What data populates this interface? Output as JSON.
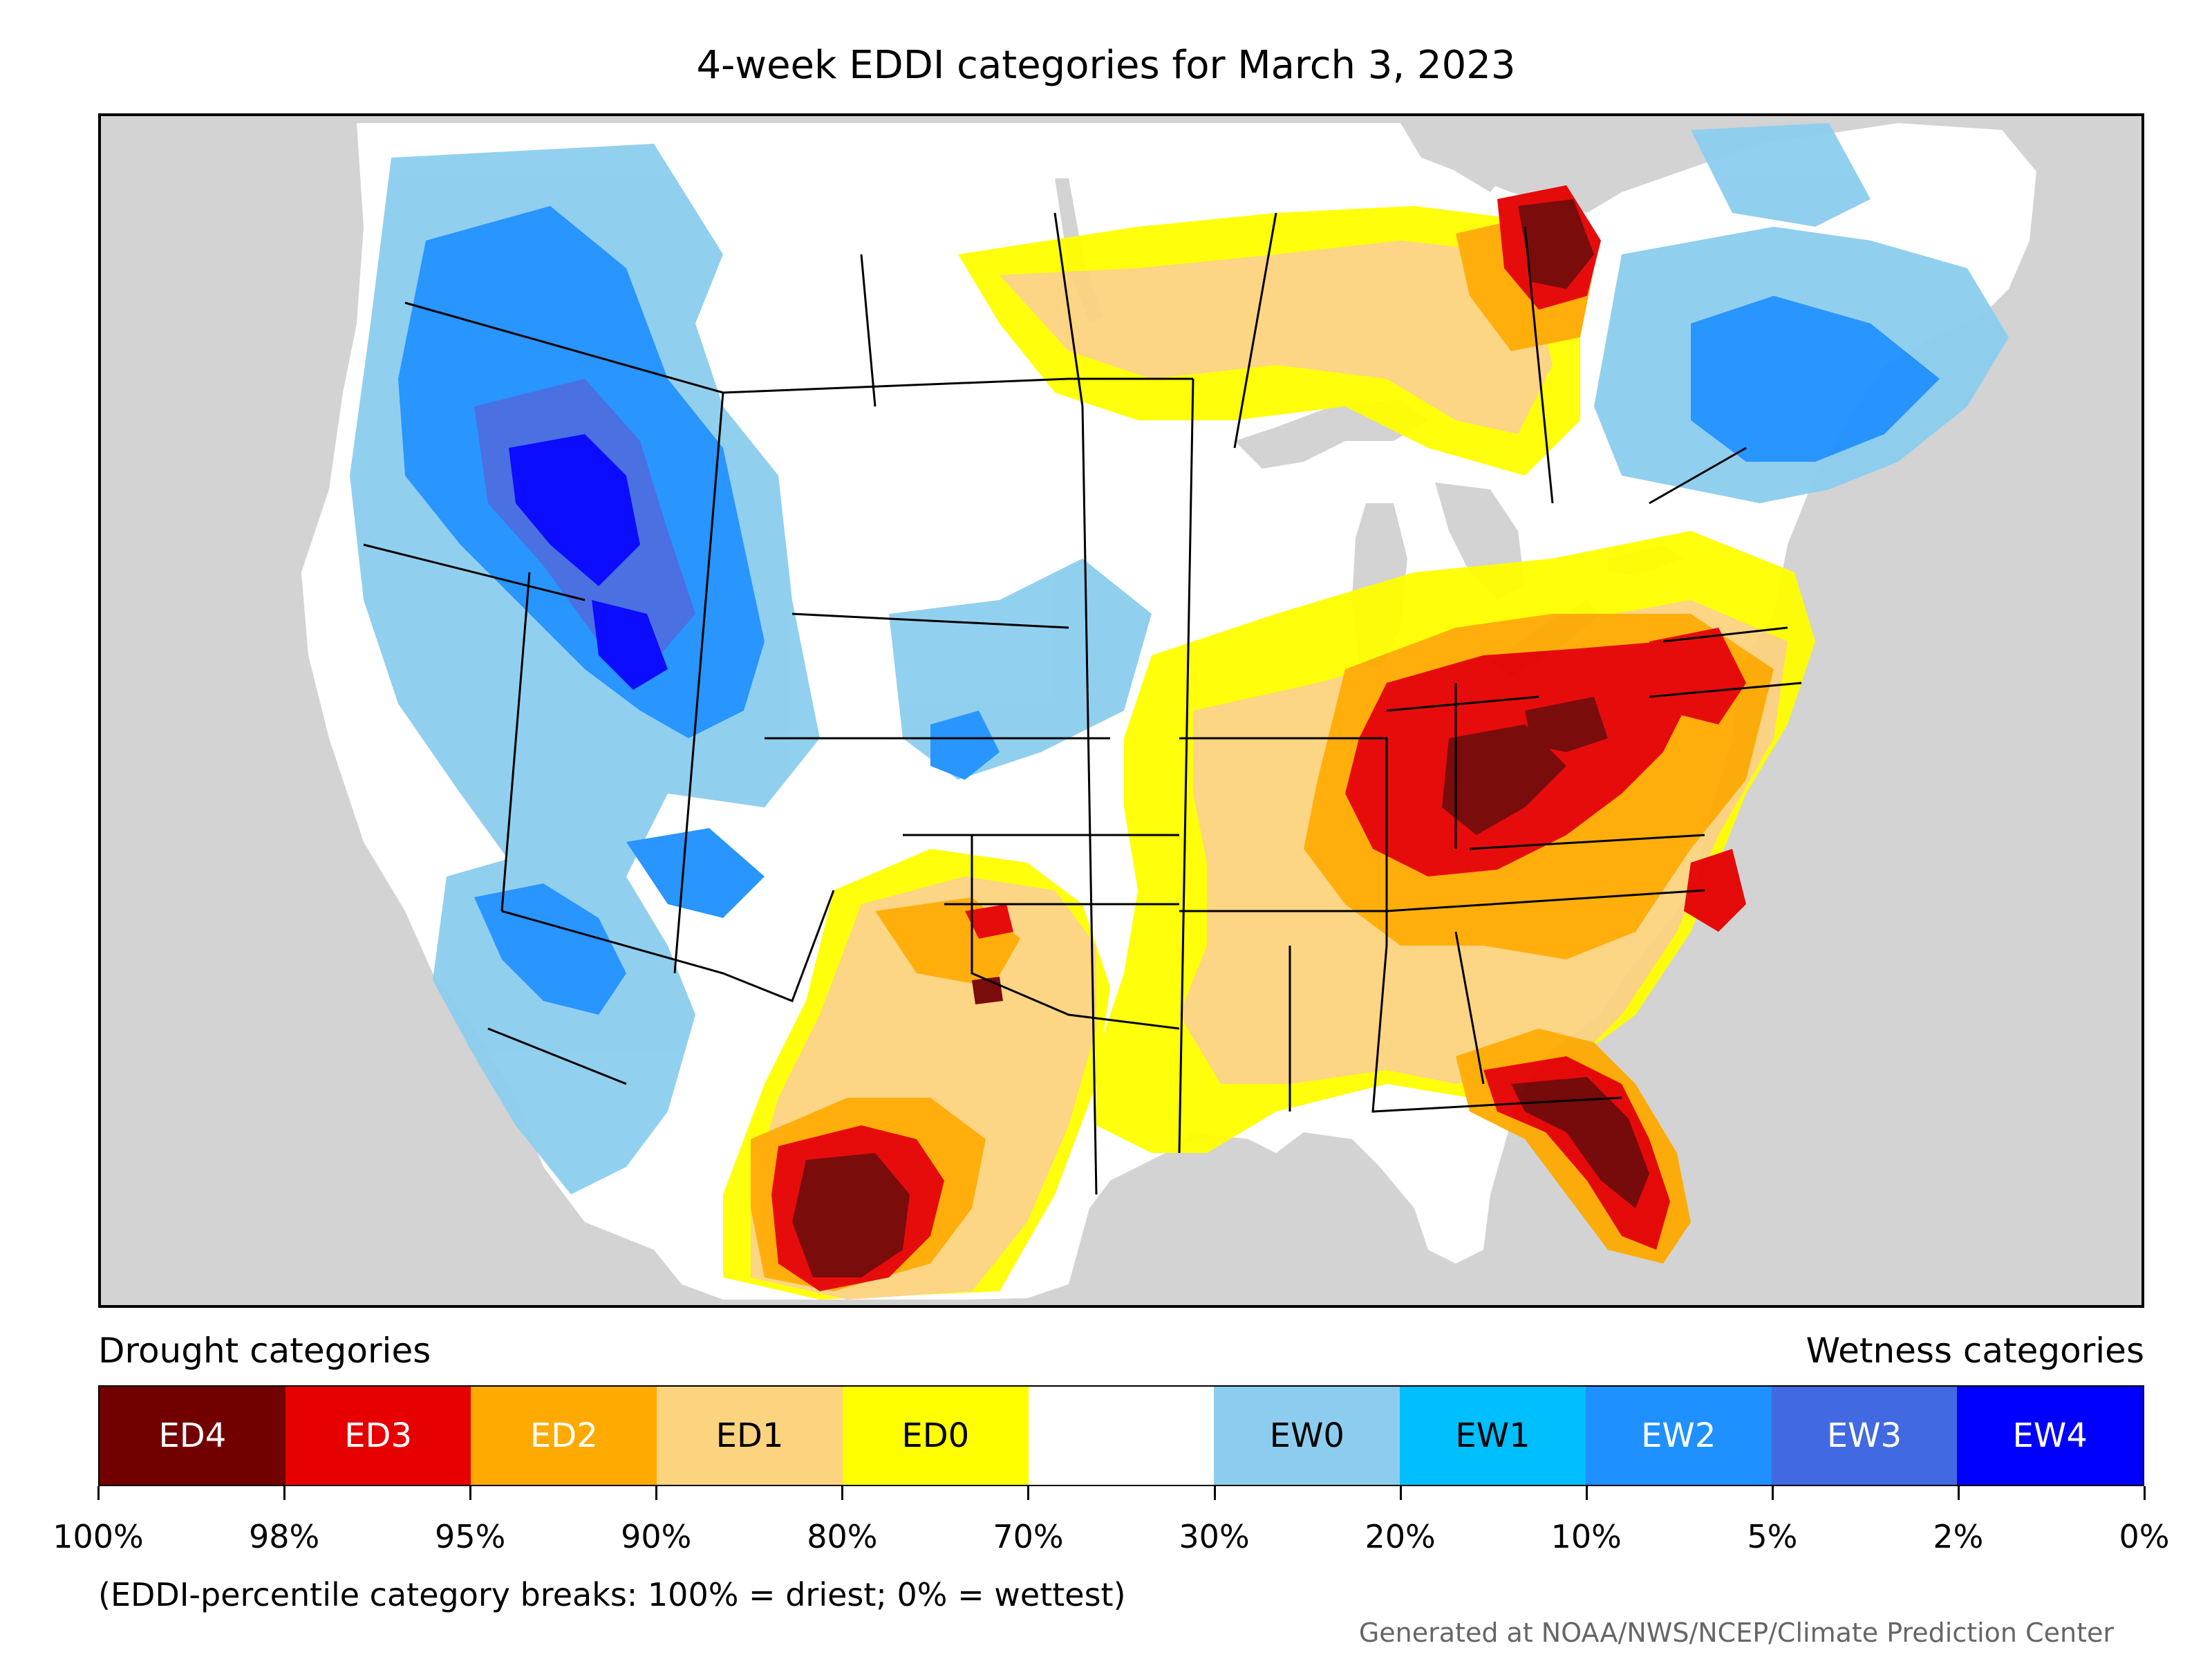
{
  "title": "4-week EDDI categories for March 3, 2023",
  "legend": {
    "drought_heading": "Drought categories",
    "wetness_heading": "Wetness categories",
    "categories": [
      {
        "label": "ED4",
        "color": "#730000",
        "text_color": "#ffffff"
      },
      {
        "label": "ED3",
        "color": "#e60000",
        "text_color": "#ffffff"
      },
      {
        "label": "ED2",
        "color": "#ffaa00",
        "text_color": "#ffffff"
      },
      {
        "label": "ED1",
        "color": "#fcd37f",
        "text_color": "#000000"
      },
      {
        "label": "ED0",
        "color": "#ffff00",
        "text_color": "#000000"
      },
      {
        "label": "",
        "color": "#ffffff",
        "text_color": "#000000"
      },
      {
        "label": "EW0",
        "color": "#8ccdef",
        "text_color": "#000000"
      },
      {
        "label": "EW1",
        "color": "#00bfff",
        "text_color": "#000000"
      },
      {
        "label": "EW2",
        "color": "#1e90ff",
        "text_color": "#ffffff"
      },
      {
        "label": "EW3",
        "color": "#4169e1",
        "text_color": "#ffffff"
      },
      {
        "label": "EW4",
        "color": "#0000ff",
        "text_color": "#ffffff"
      }
    ],
    "percent_breaks": [
      "100%",
      "98%",
      "95%",
      "90%",
      "80%",
      "70%",
      "30%",
      "20%",
      "10%",
      "5%",
      "2%",
      "0%"
    ]
  },
  "note": "(EDDI-percentile category breaks: 100% = driest; 0% = wettest)",
  "credit": "Generated at NOAA/NWS/NCEP/Climate Prediction Center",
  "map": {
    "background_color": "#d3d3d3",
    "land_color": "#ffffff"
  }
}
